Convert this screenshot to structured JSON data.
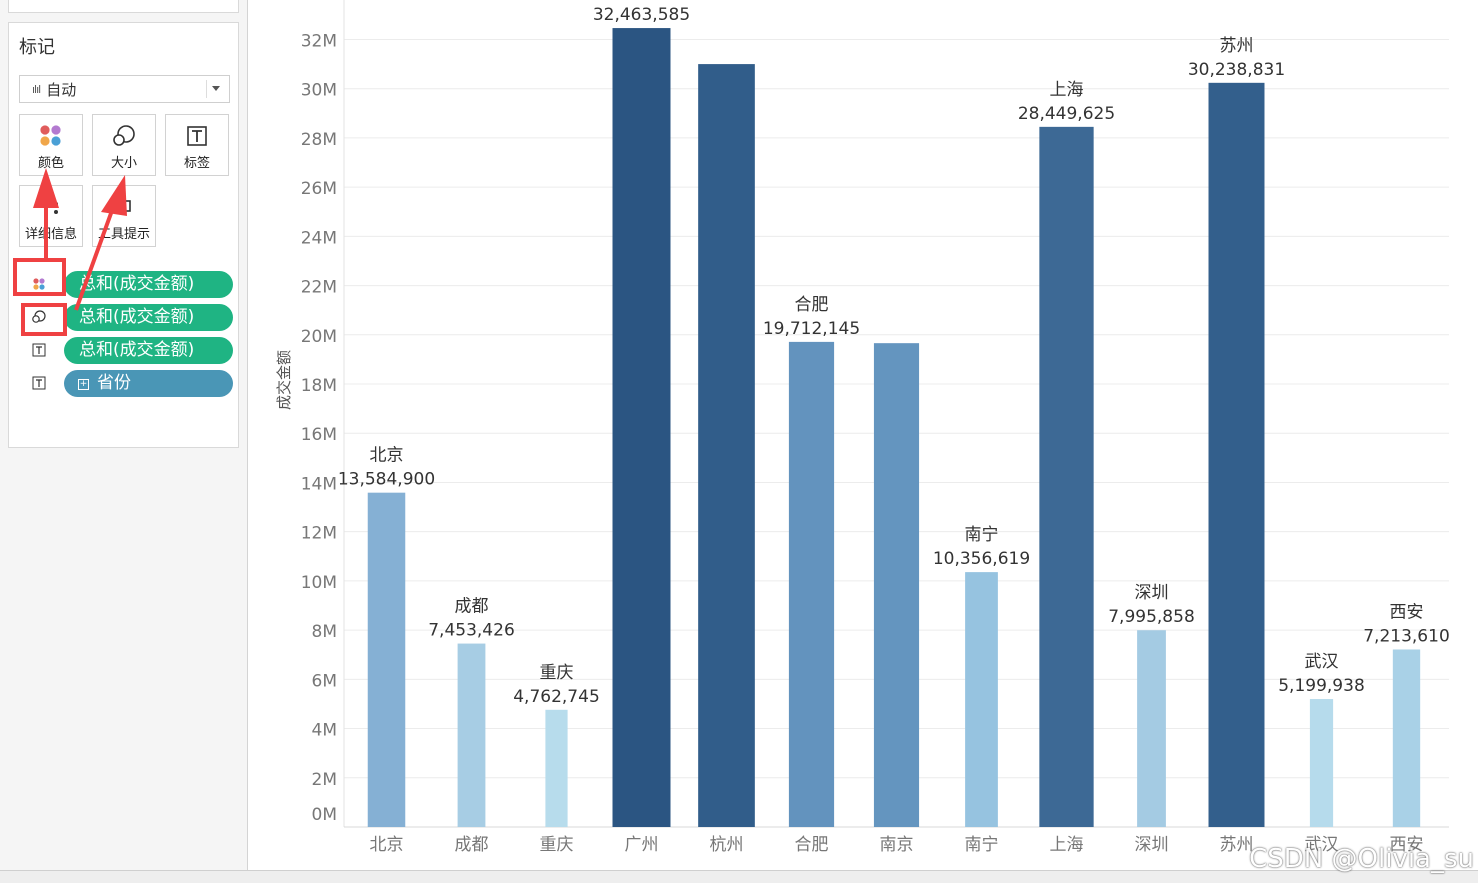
{
  "marks_panel": {
    "title": "标记",
    "mark_type": "自动",
    "buttons": [
      {
        "id": "color",
        "label": "颜色"
      },
      {
        "id": "size",
        "label": "大小"
      },
      {
        "id": "label",
        "label": "标签"
      },
      {
        "id": "detail",
        "label": "详细信息"
      },
      {
        "id": "tooltip",
        "label": "工具提示"
      }
    ],
    "shelf": [
      {
        "type": "color",
        "pill": "总和(成交金额)",
        "pill_color": "green"
      },
      {
        "type": "size",
        "pill": "总和(成交金额)",
        "pill_color": "green"
      },
      {
        "type": "label",
        "pill": "总和(成交金额)",
        "pill_color": "green"
      },
      {
        "type": "label",
        "pill": "省份",
        "pill_color": "blue"
      }
    ]
  },
  "colors": {
    "pill_green": "#1fb483",
    "pill_blue": "#4a96b6",
    "annotation_red": "#ef4142"
  },
  "chart_data": {
    "type": "bar",
    "ylabel": "成交金额",
    "y_ticks": [
      "0M",
      "2M",
      "4M",
      "6M",
      "8M",
      "10M",
      "12M",
      "14M",
      "16M",
      "18M",
      "20M",
      "22M",
      "24M",
      "26M",
      "28M",
      "30M",
      "32M"
    ],
    "ylim": [
      0,
      33000000
    ],
    "categories": [
      "北京",
      "成都",
      "重庆",
      "广州",
      "杭州",
      "合肥",
      "南京",
      "南宁",
      "上海",
      "深圳",
      "苏州",
      "武汉",
      "西安"
    ],
    "values": [
      13584900,
      7453426,
      4762745,
      32463585,
      31000000,
      19712145,
      19660000,
      10356619,
      28449625,
      7995858,
      30238831,
      5199938,
      7213610
    ],
    "value_labels": [
      "13,584,900",
      "7,453,426",
      "4,762,745",
      "32,463,585",
      "",
      "19,712,145",
      "",
      "10,356,619",
      "28,449,625",
      "7,995,858",
      "30,238,831",
      "5,199,938",
      "7,213,610"
    ],
    "category_labels_above": [
      "北京",
      "成都",
      "重庆",
      "",
      "",
      "合肥",
      "",
      "南宁",
      "上海",
      "深圳",
      "苏州",
      "武汉",
      "西安"
    ],
    "bar_colors": [
      "#85b0d4",
      "#a7cde4",
      "#b7dcec",
      "#2b5582",
      "#315d8a",
      "#6393be",
      "#6495bf",
      "#96c3e0",
      "#3d6995",
      "#a4cbe3",
      "#335f8c",
      "#b6dbec",
      "#a9d1e7"
    ],
    "grid": true,
    "legend": "none"
  },
  "watermark": "CSDN @Olivia_su"
}
